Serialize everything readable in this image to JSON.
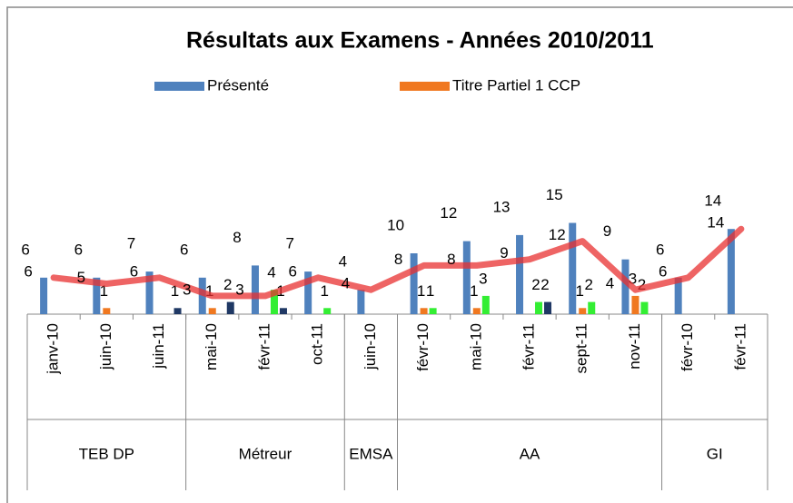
{
  "chart_data": {
    "type": "bar",
    "title": "Résultats aux Examens - Années 2010/2011",
    "categories": [
      "janv-10",
      "juin-10",
      "juin-11",
      "mai-10",
      "févr-11",
      "oct-11",
      "juin-10",
      "févr-10",
      "mai-10",
      "févr-11",
      "sept-11",
      "nov-11",
      "févr-10",
      "févr-11"
    ],
    "group_labels": [
      "TEB DP",
      "Métreur",
      "EMSA",
      "AA",
      "GI"
    ],
    "group_sizes": [
      3,
      3,
      1,
      5,
      2
    ],
    "series": [
      {
        "name": "Présenté",
        "color": "#4f81bd",
        "values": [
          6,
          6,
          7,
          6,
          8,
          7,
          4,
          10,
          12,
          13,
          15,
          9,
          6,
          14
        ]
      },
      {
        "name": "Titre Partiel 1 CCP",
        "color": "#f07820",
        "values": [
          null,
          1,
          null,
          1,
          null,
          null,
          null,
          1,
          1,
          null,
          1,
          3,
          null,
          null
        ]
      },
      {
        "color": "#33ee33",
        "values": [
          null,
          null,
          null,
          null,
          4,
          1,
          null,
          1,
          3,
          2,
          2,
          2,
          null,
          null
        ]
      },
      {
        "color": "#1f3864",
        "values": [
          null,
          null,
          1,
          2,
          1,
          null,
          null,
          null,
          null,
          2,
          null,
          null,
          null,
          null
        ]
      },
      {
        "type": "line",
        "color": "#e83030",
        "values": [
          6,
          5,
          6,
          3,
          3,
          6,
          4,
          8,
          8,
          9,
          12,
          4,
          6,
          14
        ]
      }
    ],
    "ylim": [
      0,
      20
    ],
    "legend": "top"
  }
}
